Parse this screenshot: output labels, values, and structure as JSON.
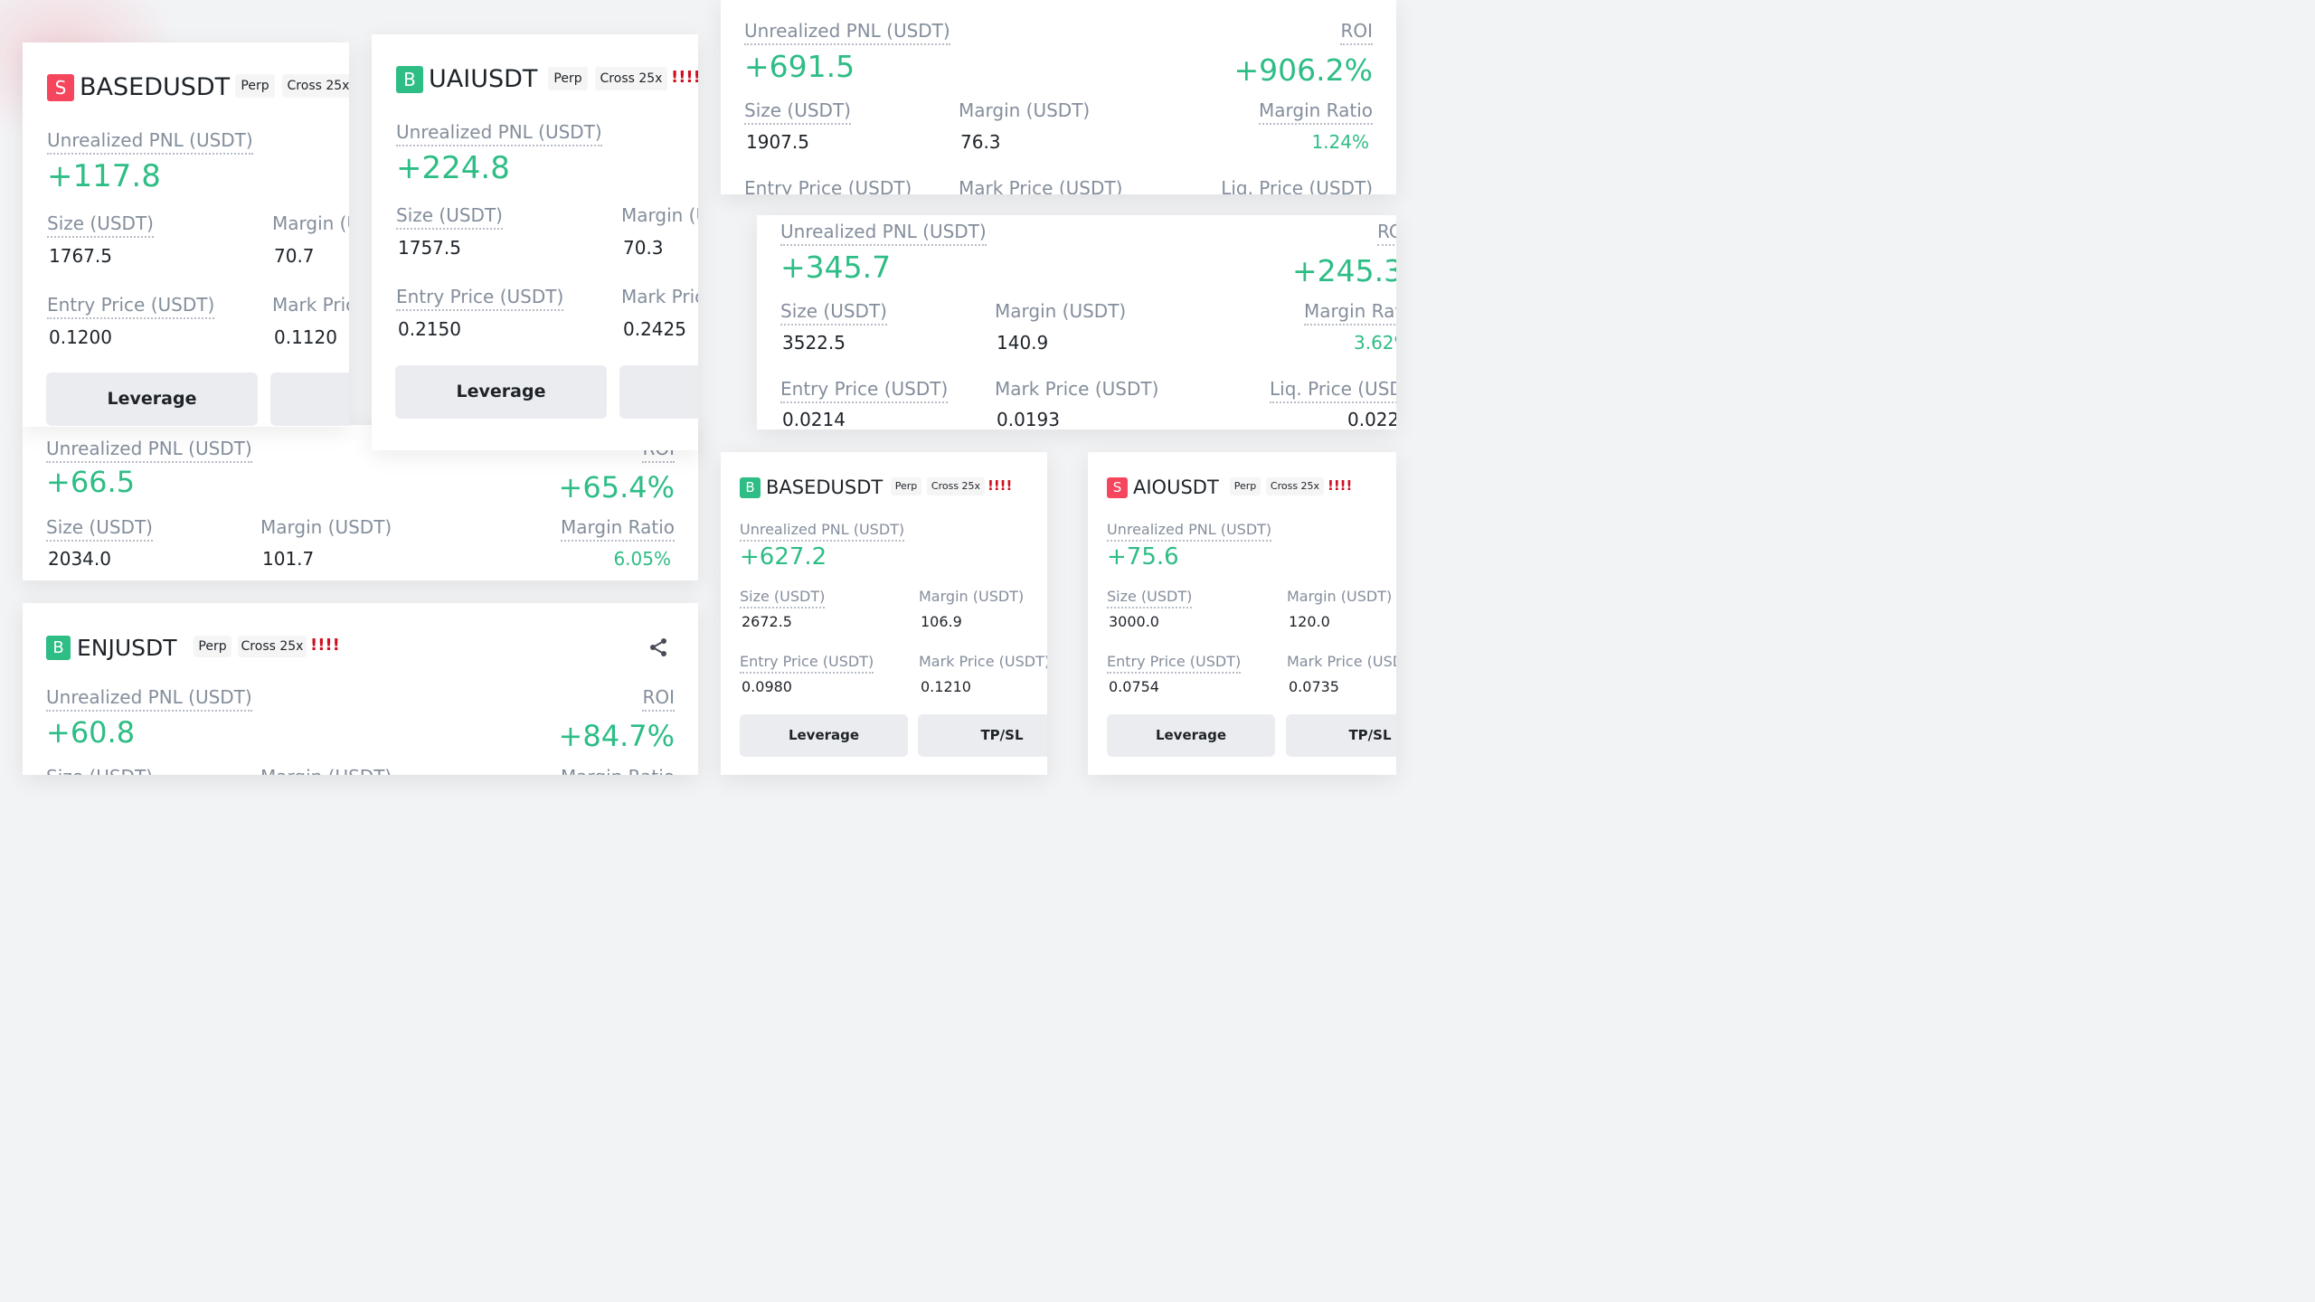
{
  "card1": {
    "side": "S",
    "symbol": "BASEDUSDT",
    "type": "Perp",
    "margin_mode": "Cross 25x",
    "pnl_label": "Unrealized PNL (USDT)",
    "pnl": "+117.8",
    "size_label": "Size (USDT)",
    "size": "1767.5",
    "margin_label": "Margin (U",
    "margin": "70.7",
    "entry_label": "Entry Price (USDT)",
    "entry": "0.1200",
    "mark_label": "Mark Pric",
    "mark": "0.1120",
    "leverage_btn": "Leverage"
  },
  "card2": {
    "side": "B",
    "symbol": "UAIUSDT",
    "type": "Perp",
    "margin_mode": "Cross 25x",
    "alert": "!!!!",
    "pnl_label": "Unrealized PNL (USDT)",
    "pnl": "+224.8",
    "size_label": "Size (USDT)",
    "size": "1757.5",
    "margin_label": "Margin (U",
    "margin": "70.3",
    "entry_label": "Entry Price (USDT)",
    "entry": "0.2150",
    "mark_label": "Mark Pric",
    "mark": "0.2425",
    "leverage_btn": "Leverage"
  },
  "card3": {
    "pnl_label": "Unrealized PNL (USDT)",
    "pnl": "+691.5",
    "roi_label": "ROI",
    "roi": "+906.2%",
    "size_label": "Size (USDT)",
    "size": "1907.5",
    "margin_label": "Margin (USDT)",
    "margin": "76.3",
    "ratio_label": "Margin Ratio",
    "ratio": "1.24%",
    "entry_label": "Entry Price (USDT)",
    "mark_label": "Mark Price (USDT)",
    "liq_label": "Liq. Price (USDT)"
  },
  "card4": {
    "pnl_label": "Unrealized PNL (USDT)",
    "pnl": "+345.7",
    "roi_label": "RC",
    "roi": "+245.3%",
    "size_label": "Size (USDT)",
    "size": "3522.5",
    "margin_label": "Margin (USDT)",
    "margin": "140.9",
    "ratio_label": "Margin Rat",
    "ratio": "3.62%",
    "entry_label": "Entry Price (USDT)",
    "entry": "0.0214",
    "mark_label": "Mark Price (USDT)",
    "mark": "0.0193",
    "liq_label": "Liq. Price (USD",
    "liq": "0.022"
  },
  "card5": {
    "pnl_label": "Unrealized PNL (USDT)",
    "pnl": "+66.5",
    "roi_label": "ROI",
    "roi": "+65.4%",
    "size_label": "Size (USDT)",
    "size": "2034.0",
    "margin_label": "Margin (USDT)",
    "margin": "101.7",
    "ratio_label": "Margin Ratio",
    "ratio": "6.05%"
  },
  "card6": {
    "side": "B",
    "symbol": "ENJUSDT",
    "type": "Perp",
    "margin_mode": "Cross 25x",
    "alert": "!!!!",
    "share_icon": "share-icon",
    "pnl_label": "Unrealized PNL (USDT)",
    "pnl": "+60.8",
    "roi_label": "ROI",
    "roi": "+84.7%",
    "size_label": "Size (USDT)",
    "margin_label": "Margin (USDT)",
    "ratio_label": "Margin Ratio"
  },
  "card7": {
    "side": "B",
    "symbol": "BASEDUSDT",
    "type": "Perp",
    "margin_mode": "Cross 25x",
    "alert": "!!!!",
    "pnl_label": "Unrealized PNL (USDT)",
    "pnl": "+627.2",
    "size_label": "Size (USDT)",
    "size": "2672.5",
    "margin_label": "Margin (USDT)",
    "margin": "106.9",
    "entry_label": "Entry Price (USDT)",
    "entry": "0.0980",
    "mark_label": "Mark Price (USDT)",
    "mark": "0.1210",
    "leverage_btn": "Leverage",
    "tpsl_btn": "TP/SL"
  },
  "card8": {
    "side": "S",
    "symbol": "AIOUSDT",
    "type": "Perp",
    "margin_mode": "Cross 25x",
    "alert": "!!!!",
    "pnl_label": "Unrealized PNL (USDT)",
    "pnl": "+75.6",
    "size_label": "Size (USDT)",
    "size": "3000.0",
    "margin_label": "Margin (USDT)",
    "margin": "120.0",
    "entry_label": "Entry Price (USDT)",
    "entry": "0.0754",
    "mark_label": "Mark Price (USD",
    "mark": "0.0735",
    "leverage_btn": "Leverage",
    "tpsl_btn": "TP/SL"
  }
}
